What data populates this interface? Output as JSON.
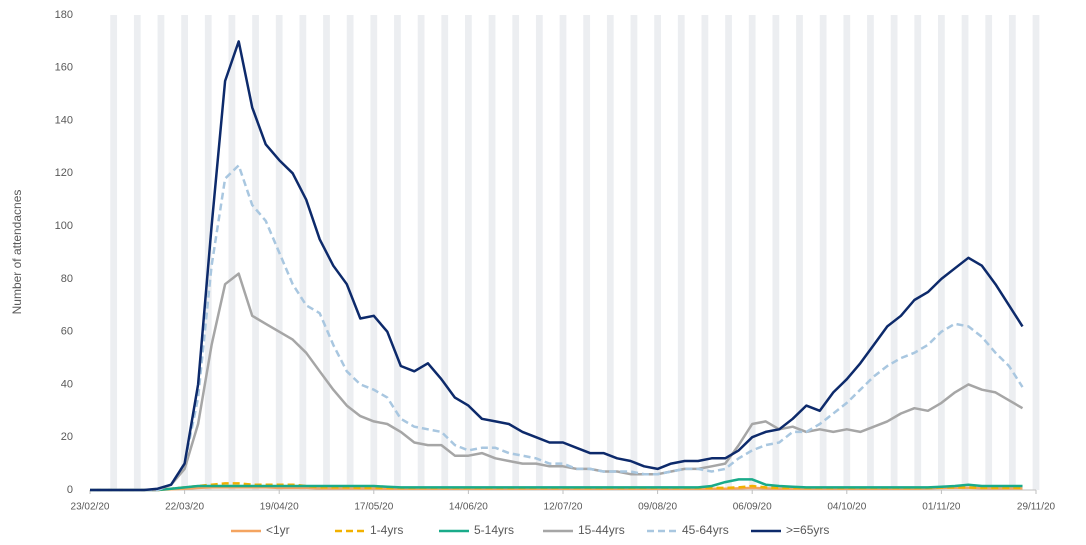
{
  "chart_data": {
    "type": "line",
    "y_label": "Number of attendacnes",
    "x": [
      "23/02/20",
      "27/02/20",
      "02/03/20",
      "06/03/20",
      "10/03/20",
      "14/03/20",
      "18/03/20",
      "22/03/20",
      "26/03/20",
      "30/03/20",
      "03/04/20",
      "07/04/20",
      "11/04/20",
      "15/04/20",
      "19/04/20",
      "23/04/20",
      "27/04/20",
      "01/05/20",
      "05/05/20",
      "09/05/20",
      "13/05/20",
      "17/05/20",
      "21/05/20",
      "25/05/20",
      "29/05/20",
      "02/06/20",
      "06/06/20",
      "10/06/20",
      "14/06/20",
      "18/06/20",
      "22/06/20",
      "26/06/20",
      "30/06/20",
      "04/07/20",
      "08/07/20",
      "12/07/20",
      "16/07/20",
      "20/07/20",
      "24/07/20",
      "28/07/20",
      "01/08/20",
      "05/08/20",
      "09/08/20",
      "13/08/20",
      "17/08/20",
      "21/08/20",
      "25/08/20",
      "29/08/20",
      "02/09/20",
      "06/09/20",
      "10/09/20",
      "14/09/20",
      "18/09/20",
      "22/09/20",
      "26/09/20",
      "30/09/20",
      "04/10/20",
      "08/10/20",
      "12/10/20",
      "16/10/20",
      "20/10/20",
      "24/10/20",
      "28/10/20",
      "01/11/20",
      "05/11/20",
      "09/11/20",
      "13/11/20",
      "17/11/20",
      "21/11/20",
      "25/11/20"
    ],
    "series": [
      {
        "name": "<1yr",
        "color": "#f4a460",
        "dashed": false,
        "values": [
          0,
          0,
          0,
          0,
          0,
          0,
          0.3,
          0.5,
          0.8,
          1,
          1,
          1,
          1,
          1,
          0.8,
          0.8,
          0.8,
          0.6,
          0.6,
          0.6,
          0.6,
          0.6,
          0.5,
          0.5,
          0.5,
          0.5,
          0.5,
          0.5,
          0.5,
          0.5,
          0.5,
          0.5,
          0.5,
          0.5,
          0.5,
          0.5,
          0.5,
          0.5,
          0.5,
          0.5,
          0.5,
          0.5,
          0.5,
          0.5,
          0.5,
          0.5,
          0.5,
          0.5,
          0.6,
          0.8,
          0.6,
          0.5,
          0.5,
          0.5,
          0.5,
          0.5,
          0.5,
          0.5,
          0.5,
          0.5,
          0.5,
          0.5,
          0.6,
          0.8,
          0.8,
          0.8,
          0.7,
          0.6,
          0.6,
          0.6
        ]
      },
      {
        "name": "1-4yrs",
        "color": "#f2b100",
        "dashed": true,
        "values": [
          0,
          0,
          0,
          0,
          0,
          0,
          0.5,
          1,
          1.5,
          2,
          2.5,
          2.5,
          2,
          2,
          2,
          2,
          1.5,
          1,
          1,
          1,
          0.8,
          0.8,
          0.8,
          0.8,
          0.8,
          0.8,
          0.8,
          0.8,
          0.8,
          0.8,
          0.8,
          0.8,
          0.8,
          0.8,
          0.8,
          0.8,
          0.8,
          0.8,
          0.8,
          0.8,
          0.8,
          0.8,
          0.8,
          0.8,
          0.8,
          0.8,
          0.8,
          0.8,
          1,
          1.5,
          1,
          0.8,
          0.8,
          0.8,
          0.8,
          0.8,
          0.8,
          0.8,
          0.8,
          0.8,
          0.8,
          0.8,
          0.8,
          1,
          1,
          1,
          0.8,
          0.8,
          0.8,
          0.8
        ]
      },
      {
        "name": "5-14yrs",
        "color": "#1aab8a",
        "dashed": false,
        "values": [
          0,
          0,
          0,
          0,
          0,
          0,
          0.5,
          1,
          1.5,
          1.5,
          1.5,
          1.5,
          1.5,
          1.5,
          1.5,
          1.5,
          1.5,
          1.5,
          1.5,
          1.5,
          1.5,
          1.5,
          1.2,
          1,
          1,
          1,
          1,
          1,
          1,
          1,
          1,
          1,
          1,
          1,
          1,
          1,
          1,
          1,
          1,
          1,
          1,
          1,
          1,
          1,
          1,
          1,
          1.5,
          3,
          4,
          4,
          2,
          1.5,
          1.2,
          1,
          1,
          1,
          1,
          1,
          1,
          1,
          1,
          1,
          1,
          1.2,
          1.5,
          2,
          1.5,
          1.5,
          1.5,
          1.5
        ]
      },
      {
        "name": "15-44yrs",
        "color": "#a6a6a6",
        "dashed": false,
        "values": [
          0,
          0,
          0,
          0,
          0,
          0,
          2,
          8,
          25,
          55,
          78,
          82,
          66,
          63,
          60,
          57,
          52,
          45,
          38,
          32,
          28,
          26,
          25,
          22,
          18,
          17,
          17,
          13,
          13,
          14,
          12,
          11,
          10,
          10,
          9,
          9,
          8,
          8,
          7,
          7,
          6,
          6,
          6,
          7,
          8,
          8,
          9,
          10,
          17,
          25,
          26,
          23,
          24,
          22,
          23,
          22,
          23,
          22,
          24,
          26,
          29,
          31,
          30,
          33,
          37,
          40,
          38,
          37,
          34,
          31
        ]
      },
      {
        "name": "45-64yrs",
        "color": "#a9c7e0",
        "dashed": true,
        "values": [
          0,
          0,
          0,
          0,
          0,
          0,
          2,
          10,
          35,
          85,
          118,
          123,
          108,
          102,
          90,
          78,
          70,
          67,
          55,
          45,
          40,
          38,
          35,
          27,
          24,
          23,
          22,
          17,
          15,
          16,
          16,
          14,
          13,
          12,
          10,
          10,
          8,
          8,
          7,
          7,
          7,
          6,
          6,
          7,
          8,
          8,
          7,
          8,
          12,
          15,
          17,
          18,
          22,
          22,
          25,
          29,
          33,
          38,
          43,
          47,
          50,
          52,
          55,
          60,
          63,
          62,
          58,
          52,
          47,
          39
        ]
      },
      {
        "name": ">=65yrs",
        "color": "#0d2a6b",
        "dashed": false,
        "values": [
          0,
          0,
          0,
          0,
          0,
          0.5,
          2,
          10,
          40,
          100,
          155,
          170,
          145,
          131,
          125,
          120,
          110,
          95,
          85,
          78,
          65,
          66,
          60,
          47,
          45,
          48,
          42,
          35,
          32,
          27,
          26,
          25,
          22,
          20,
          18,
          18,
          16,
          14,
          14,
          12,
          11,
          9,
          8,
          10,
          11,
          11,
          12,
          12,
          15,
          20,
          22,
          23,
          27,
          32,
          30,
          37,
          42,
          48,
          55,
          62,
          66,
          72,
          75,
          80,
          84,
          88,
          85,
          78,
          70,
          62
        ]
      }
    ],
    "xlim": [
      "23/02/20",
      "29/11/20"
    ],
    "xticks": [
      "23/02/20",
      "22/03/20",
      "19/04/20",
      "17/05/20",
      "14/06/20",
      "12/07/20",
      "09/08/20",
      "06/09/20",
      "04/10/20",
      "01/11/20",
      "29/11/20"
    ],
    "ylim": [
      0,
      180
    ],
    "yticks": [
      0,
      20,
      40,
      60,
      80,
      100,
      120,
      140,
      160,
      180
    ],
    "legend": "bottom"
  }
}
